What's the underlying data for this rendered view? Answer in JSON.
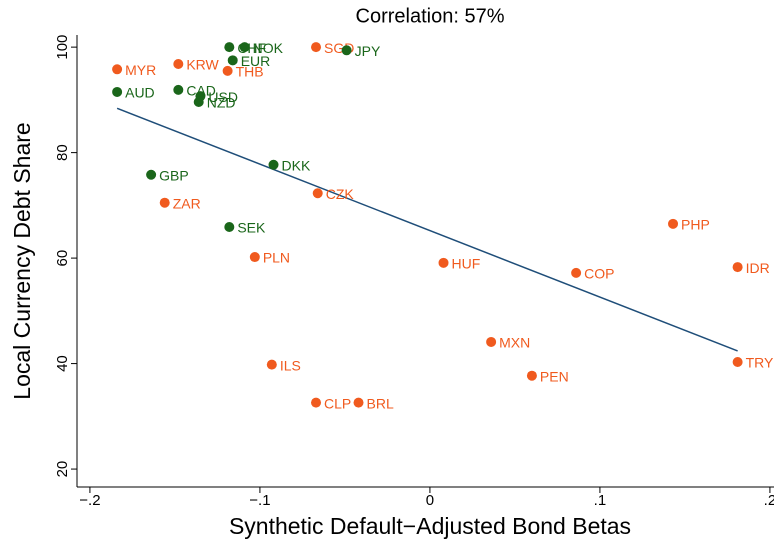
{
  "chart_data": {
    "type": "scatter",
    "title": "Correlation: 57%",
    "x_label": "Synthetic Default−Adjusted Bond Betas",
    "y_label": "Local Currency Debt Share",
    "xlim": [
      -0.2076,
      0.2024
    ],
    "ylim": [
      16.6,
      102.3
    ],
    "xticks": [
      {
        "value": -0.2,
        "label": "−.2"
      },
      {
        "value": -0.1,
        "label": "−.1"
      },
      0,
      {
        "value": 0.1,
        "label": ".1"
      },
      {
        "value": 0.2,
        "label": ".2"
      }
    ],
    "yticks": [
      20,
      40,
      60,
      80,
      100
    ],
    "points": [
      {
        "label": "MYR",
        "x": -0.184,
        "y": 95.8,
        "color": "#f05a1e"
      },
      {
        "label": "KRW",
        "x": -0.148,
        "y": 96.8,
        "color": "#f05a1e"
      },
      {
        "label": "THB",
        "x": -0.119,
        "y": 95.5,
        "color": "#f05a1e"
      },
      {
        "label": "SGD",
        "x": -0.067,
        "y": 100,
        "color": "#f05a1e"
      },
      {
        "label": "CHF",
        "x": -0.118,
        "y": 100,
        "color": "#1a661a"
      },
      {
        "label": "NOK",
        "x": -0.109,
        "y": 100,
        "color": "#1a661a"
      },
      {
        "label": "EUR",
        "x": -0.116,
        "y": 97.5,
        "color": "#1a661a"
      },
      {
        "label": "JPY",
        "x": -0.049,
        "y": 99.4,
        "color": "#1a661a"
      },
      {
        "label": "AUD",
        "x": -0.184,
        "y": 91.5,
        "color": "#1a661a"
      },
      {
        "label": "CAD",
        "x": -0.148,
        "y": 91.9,
        "color": "#1a661a"
      },
      {
        "label": "USD",
        "x": -0.135,
        "y": 90.7,
        "color": "#1a661a"
      },
      {
        "label": "NZD",
        "x": -0.136,
        "y": 89.6,
        "color": "#1a661a"
      },
      {
        "label": "DKK",
        "x": -0.092,
        "y": 77.7,
        "color": "#1a661a"
      },
      {
        "label": "GBP",
        "x": -0.164,
        "y": 75.8,
        "color": "#1a661a"
      },
      {
        "label": "SEK",
        "x": -0.118,
        "y": 65.9,
        "color": "#1a661a"
      },
      {
        "label": "ZAR",
        "x": -0.156,
        "y": 70.5,
        "color": "#f05a1e"
      },
      {
        "label": "CZK",
        "x": -0.066,
        "y": 72.3,
        "color": "#f05a1e"
      },
      {
        "label": "PLN",
        "x": -0.103,
        "y": 60.2,
        "color": "#f05a1e"
      },
      {
        "label": "HUF",
        "x": 0.008,
        "y": 59.1,
        "color": "#f05a1e"
      },
      {
        "label": "COP",
        "x": 0.086,
        "y": 57.2,
        "color": "#f05a1e"
      },
      {
        "label": "PHP",
        "x": 0.143,
        "y": 66.5,
        "color": "#f05a1e"
      },
      {
        "label": "IDR",
        "x": 0.181,
        "y": 58.3,
        "color": "#f05a1e"
      },
      {
        "label": "MXN",
        "x": 0.036,
        "y": 44.1,
        "color": "#f05a1e"
      },
      {
        "label": "PEN",
        "x": 0.06,
        "y": 37.7,
        "color": "#f05a1e"
      },
      {
        "label": "TRY",
        "x": 0.181,
        "y": 40.3,
        "color": "#f05a1e"
      },
      {
        "label": "ILS",
        "x": -0.093,
        "y": 39.8,
        "color": "#f05a1e"
      },
      {
        "label": "CLP",
        "x": -0.067,
        "y": 32.6,
        "color": "#f05a1e"
      },
      {
        "label": "BRL",
        "x": -0.042,
        "y": 32.6,
        "color": "#f05a1e"
      }
    ],
    "fit_line": {
      "x": [
        -0.184,
        0.181
      ],
      "y": [
        88.4,
        42.4
      ],
      "color": "#1f4e79"
    }
  }
}
